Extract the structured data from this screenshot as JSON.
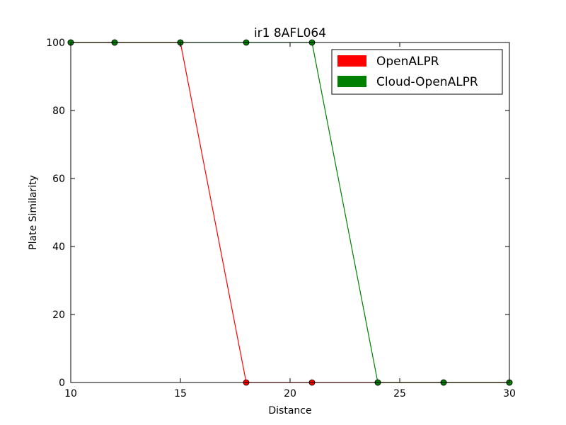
{
  "chart_data": {
    "type": "line",
    "title": "ir1 8AFL064",
    "xlabel": "Distance",
    "ylabel": "Plate Similarity",
    "xlim": [
      10,
      30
    ],
    "ylim": [
      0,
      100
    ],
    "xticks": [
      10,
      15,
      20,
      25,
      30
    ],
    "yticks": [
      0,
      20,
      40,
      60,
      80,
      100
    ],
    "grid": false,
    "legend_position": "top-right",
    "series": [
      {
        "name": "OpenALPR",
        "color": "#ff0000",
        "x": [
          10,
          12,
          15,
          18,
          21,
          24,
          27,
          30
        ],
        "y": [
          100,
          100,
          100,
          0,
          0,
          0,
          0,
          0
        ]
      },
      {
        "name": "Cloud-OpenALPR",
        "color": "#008000",
        "x": [
          10,
          12,
          15,
          18,
          21,
          24,
          27,
          30
        ],
        "y": [
          100,
          100,
          100,
          100,
          100,
          0,
          0,
          0
        ]
      }
    ]
  }
}
